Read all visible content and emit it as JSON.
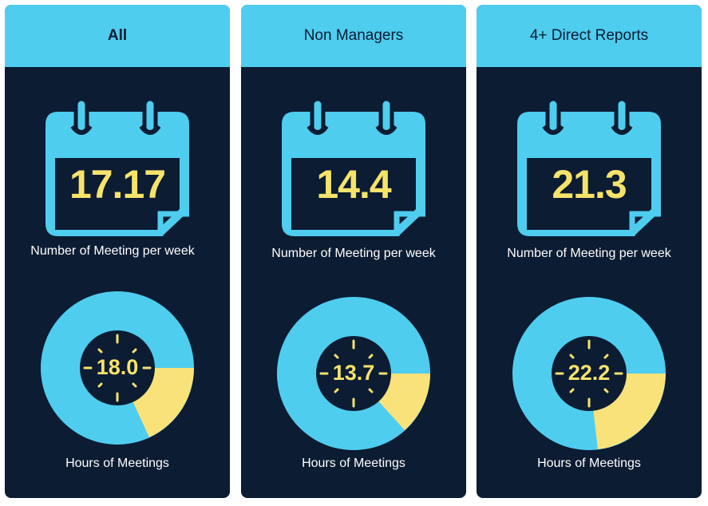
{
  "colors": {
    "card_bg": "#0b1c33",
    "header_bg": "#4fcdef",
    "accent": "#f7e26b",
    "donut_main": "#4fcdef",
    "donut_slice": "#f9e27a"
  },
  "cards": [
    {
      "title": "All",
      "meetings_per_week": "17.17",
      "meetings_label": "Number of Meeting per week",
      "hours": "18.0",
      "hours_label": "Hours of Meetings",
      "slice_fraction": 0.19
    },
    {
      "title": "Non Managers",
      "meetings_per_week": "14.4",
      "meetings_label": "Number of Meeting per week",
      "hours": "13.7",
      "hours_label": "Hours of Meetings",
      "slice_fraction": 0.15
    },
    {
      "title": "4+ Direct Reports",
      "meetings_per_week": "21.3",
      "meetings_label": "Number of Meeting per week",
      "hours": "22.2",
      "hours_label": "Hours of Meetings",
      "slice_fraction": 0.23
    }
  ]
}
